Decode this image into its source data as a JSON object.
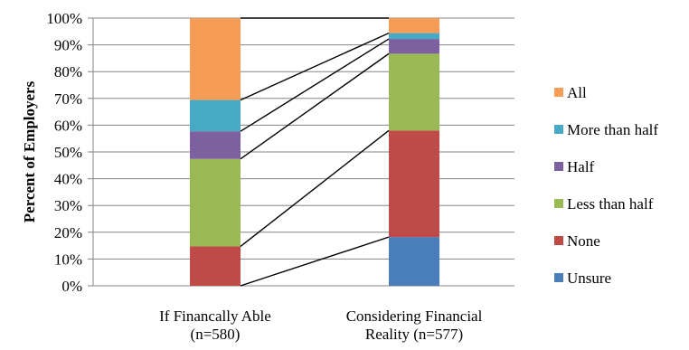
{
  "chart_data": {
    "type": "bar",
    "stacked": true,
    "percent_stacked": true,
    "ylabel": "Percent of Employers",
    "xlabel": "",
    "ylim": [
      0,
      100
    ],
    "y_ticks": [
      "0%",
      "10%",
      "20%",
      "30%",
      "40%",
      "50%",
      "60%",
      "70%",
      "80%",
      "90%",
      "100%"
    ],
    "grid": true,
    "legend_position": "right",
    "series_connector_lines": true,
    "categories": [
      [
        "If Financally Able",
        "(n=580)"
      ],
      [
        "Considering Financial",
        "Reality (n=577)"
      ]
    ],
    "series": [
      {
        "name": "Unsure",
        "color": "#4a7ebb",
        "values": [
          0,
          18.2
        ]
      },
      {
        "name": "None",
        "color": "#be4b48",
        "values": [
          14.7,
          39.8
        ]
      },
      {
        "name": "Less than half",
        "color": "#98b954",
        "values": [
          32.7,
          28.7
        ]
      },
      {
        "name": "Half",
        "color": "#7d60a0",
        "values": [
          10.3,
          5.5
        ]
      },
      {
        "name": "More than half",
        "color": "#46aac5",
        "values": [
          11.7,
          2.2
        ]
      },
      {
        "name": "All",
        "color": "#f59d56",
        "values": [
          30.6,
          5.6
        ]
      }
    ]
  }
}
